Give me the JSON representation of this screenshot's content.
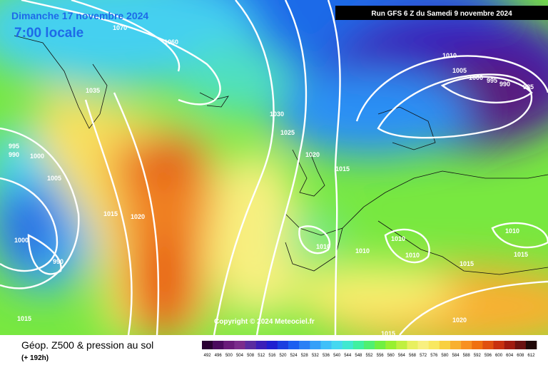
{
  "header": {
    "date": "Dimanche 17 novembre 2024",
    "time": "7:00 locale",
    "run": "Run GFS 6 Z du Samedi 9 novembre 2024"
  },
  "footer": {
    "title": "Géop. Z500 & pression au sol",
    "lead": "(+ 192h)",
    "copyright": "Copyright © 2024 Meteociel.fr"
  },
  "scale": {
    "labels": [
      "492",
      "496",
      "500",
      "504",
      "508",
      "512",
      "516",
      "520",
      "524",
      "528",
      "532",
      "536",
      "540",
      "544",
      "548",
      "552",
      "556",
      "560",
      "564",
      "568",
      "572",
      "576",
      "580",
      "584",
      "588",
      "592",
      "596",
      "600",
      "604",
      "608",
      "612"
    ],
    "colors": [
      "#2a0033",
      "#4b0a5e",
      "#6a1b7a",
      "#7c2c8c",
      "#5a2ca0",
      "#3b1fb8",
      "#1f1fd0",
      "#1a3ee0",
      "#1b5ff0",
      "#2a80f5",
      "#35a0f8",
      "#3fc0f8",
      "#45d8f0",
      "#40e8d0",
      "#40f0a0",
      "#50f070",
      "#70f040",
      "#98f030",
      "#c0f040",
      "#e8f060",
      "#f8f080",
      "#f8e860",
      "#f8d040",
      "#f8b030",
      "#f89020",
      "#f07010",
      "#e05010",
      "#c83010",
      "#a01a10",
      "#6a1010",
      "#200808"
    ]
  },
  "isobar_labels": [
    "1070",
    "1060",
    "1035",
    "1030",
    "1025",
    "1020",
    "1015",
    "1010",
    "1005",
    "1000",
    "995",
    "990",
    "985",
    "995",
    "990",
    "1000",
    "1005",
    "1015",
    "1020",
    "1000",
    "990",
    "1010",
    "1010",
    "1010",
    "1010",
    "1010",
    "1015",
    "1015",
    "1020",
    "1015",
    "1015"
  ]
}
